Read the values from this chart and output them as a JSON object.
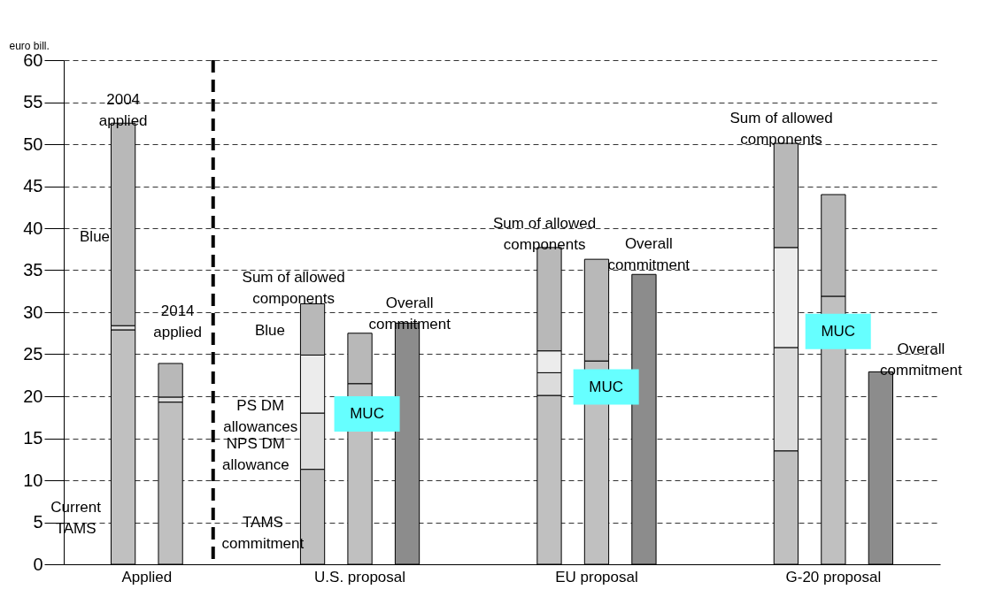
{
  "chart_data": {
    "type": "bar",
    "ylabel": "euro bill.",
    "stacked": true,
    "categories": [
      "Applied",
      null,
      null,
      null,
      null,
      "U.S. proposal",
      null,
      null,
      null,
      null,
      "EU proposal",
      null,
      null,
      null,
      null,
      "G-20 proposal",
      null
    ],
    "ylim": [
      0,
      60
    ],
    "yticks": [
      0,
      5,
      10,
      15,
      20,
      25,
      30,
      35,
      40,
      45,
      50,
      55,
      60
    ],
    "grid": "y",
    "legend": false,
    "series": [
      {
        "color": "#c0c0c0",
        "values": [
          27.9,
          19.3,
          null,
          null,
          11.3,
          21.5,
          null,
          null,
          null,
          20.1,
          24.2,
          null,
          null,
          null,
          13.5,
          31.9,
          null
        ]
      },
      {
        "color": "#dcdcdc",
        "values": [
          0.5,
          0.6,
          null,
          null,
          6.7,
          null,
          null,
          null,
          null,
          2.7,
          null,
          null,
          null,
          null,
          12.3,
          null,
          null
        ]
      },
      {
        "color": "#ececec",
        "values": [
          null,
          null,
          null,
          null,
          6.9,
          null,
          null,
          null,
          null,
          2.6,
          null,
          null,
          null,
          null,
          11.9,
          null,
          null
        ]
      },
      {
        "color": "#b8b8b8",
        "values": [
          24.1,
          4.0,
          null,
          null,
          6.1,
          6.0,
          null,
          null,
          null,
          12.3,
          12.1,
          null,
          null,
          null,
          12.4,
          12.1,
          null
        ]
      },
      {
        "color": "#8c8c8c",
        "values": [
          null,
          null,
          null,
          null,
          null,
          null,
          28.7,
          null,
          null,
          null,
          null,
          34.5,
          null,
          null,
          null,
          null,
          22.9
        ]
      }
    ],
    "annotations": [
      "2004\napplied",
      "Blue",
      "Current\nTAMS",
      "2014\napplied",
      "Sum of allowed\ncomponents",
      "Blue",
      "PS DM\nallowances",
      "NPS DM\nallowance",
      "TAMS\ncommitment",
      "Overall\ncommitment",
      "MUC",
      "Sum of allowed\ncomponents",
      "Overall\ncommitment",
      "MUC",
      "Sum of allowed\ncomponents",
      "MUC",
      "Overall\ncommitment"
    ]
  }
}
